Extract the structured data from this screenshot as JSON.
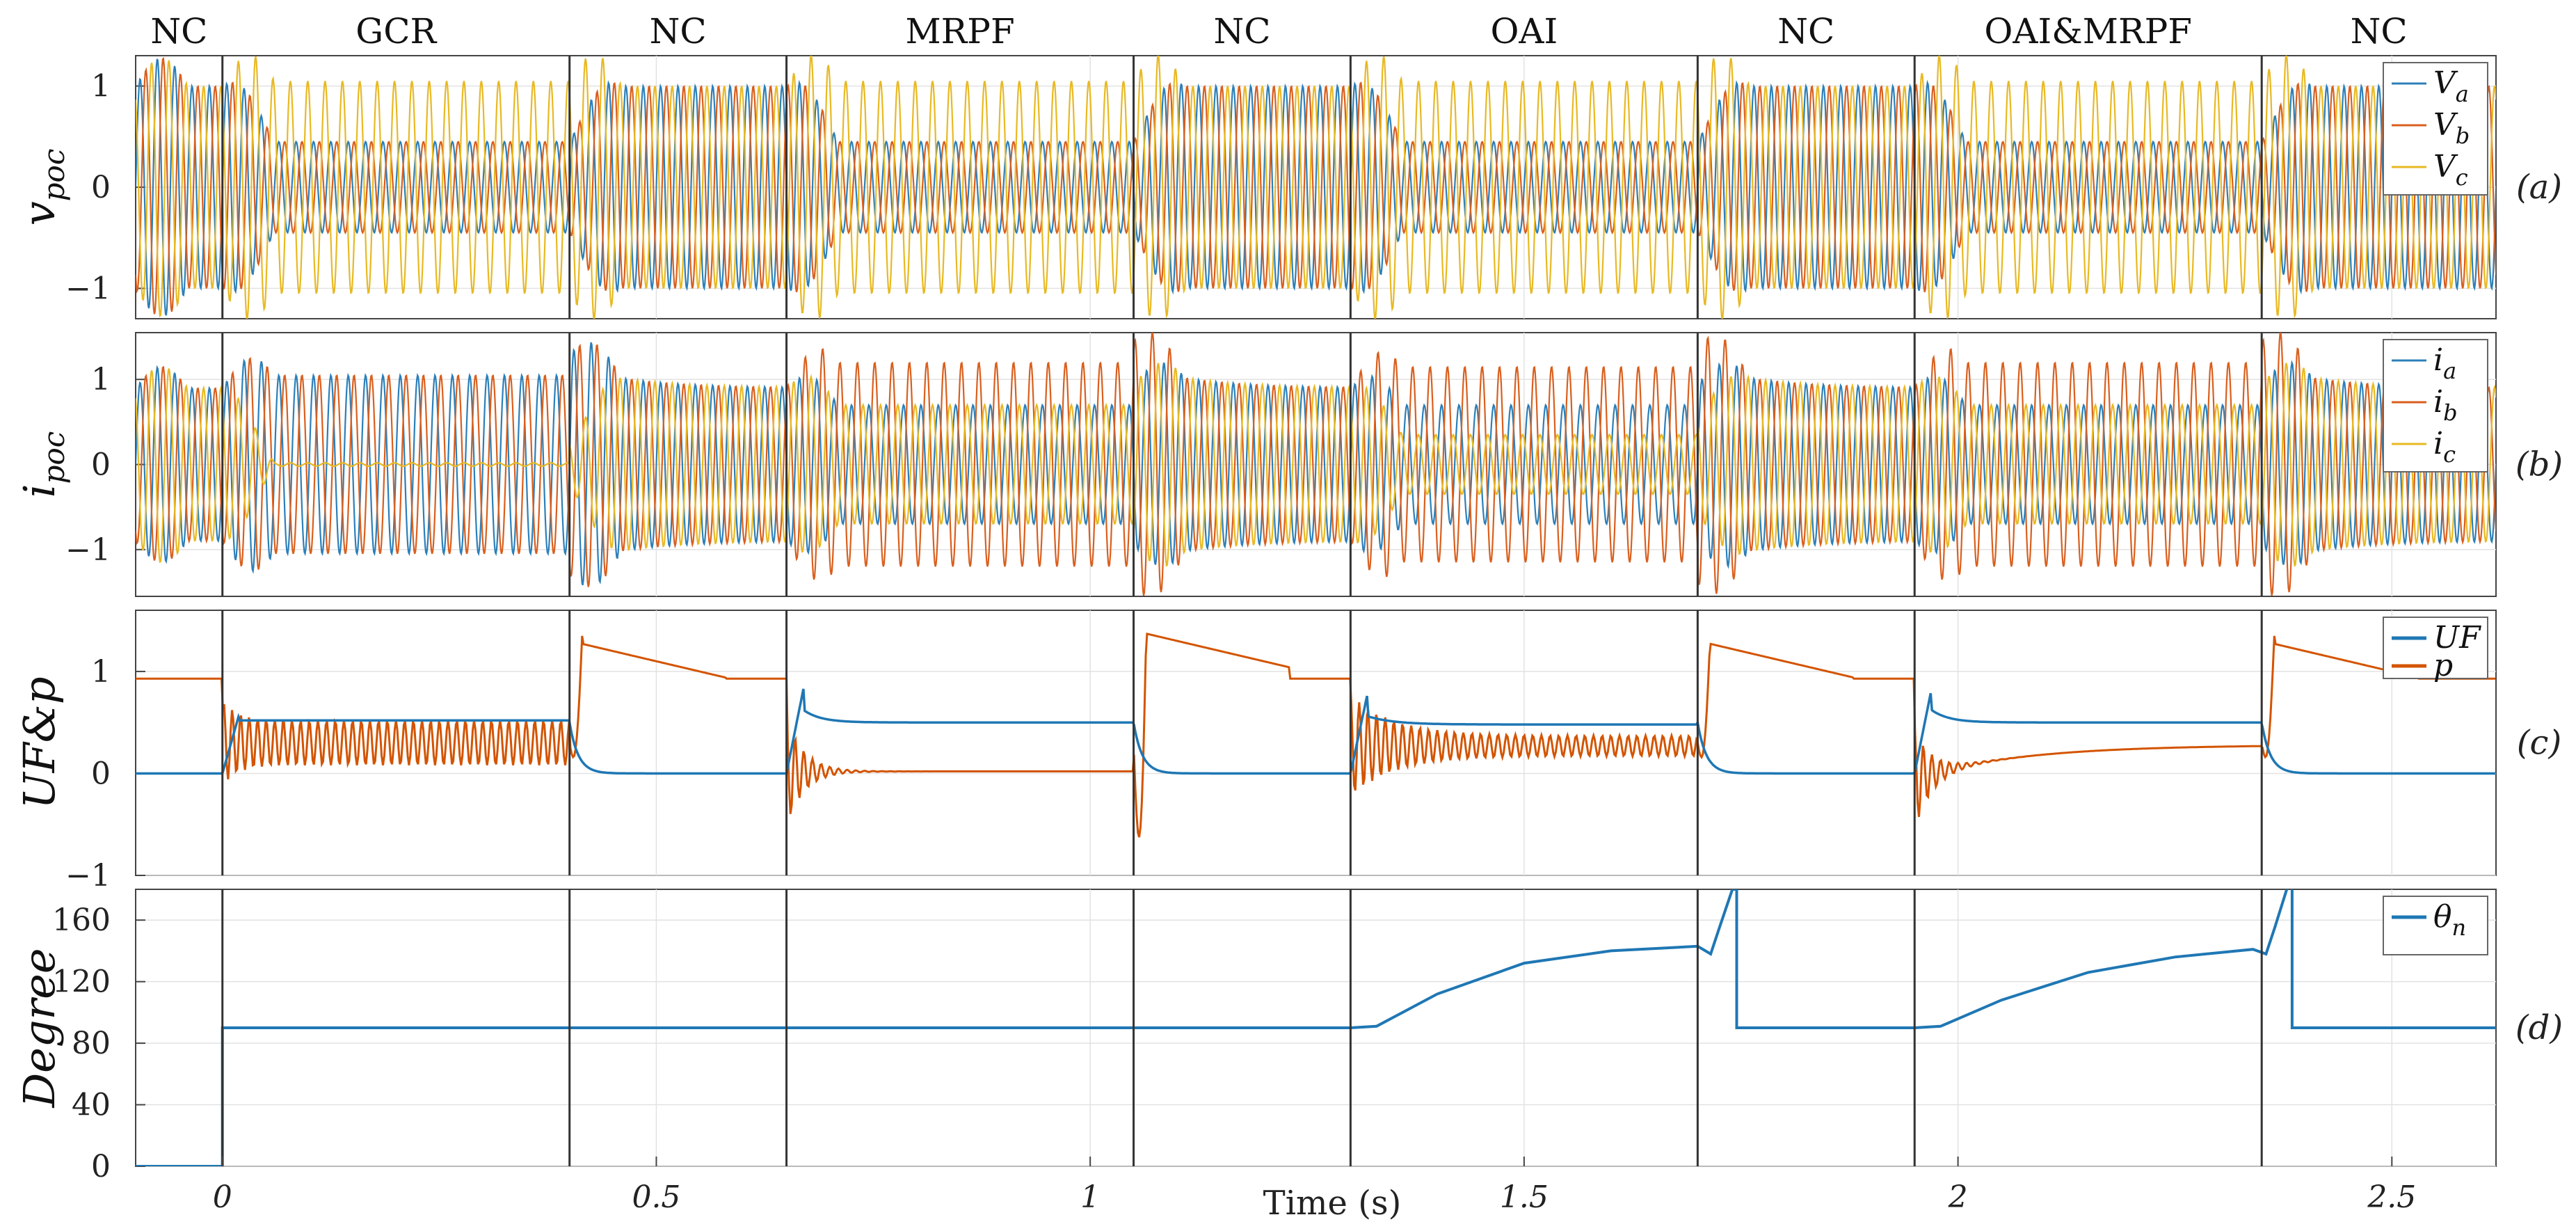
{
  "chart_data": {
    "type": "line",
    "xlabel": "Time (s)",
    "xlim": [
      -0.1,
      2.62
    ],
    "x_ticks": [
      {
        "value": 0,
        "label": "0"
      },
      {
        "value": 0.5,
        "label": "0.5"
      },
      {
        "value": 1,
        "label": "1"
      },
      {
        "value": 1.5,
        "label": "1.5"
      },
      {
        "value": 2,
        "label": "2"
      },
      {
        "value": 2.5,
        "label": "2.5"
      }
    ],
    "segments": [
      {
        "label": "NC",
        "start": -0.1,
        "end": 0.0
      },
      {
        "label": "GCR",
        "start": 0.0,
        "end": 0.4
      },
      {
        "label": "NC",
        "start": 0.4,
        "end": 0.65
      },
      {
        "label": "MRPF",
        "start": 0.65,
        "end": 1.05
      },
      {
        "label": "NC",
        "start": 1.05,
        "end": 1.3
      },
      {
        "label": "OAI",
        "start": 1.3,
        "end": 1.7
      },
      {
        "label": "NC",
        "start": 1.7,
        "end": 1.95
      },
      {
        "label": "OAI&MRPF",
        "start": 1.95,
        "end": 2.35
      },
      {
        "label": "NC",
        "start": 2.35,
        "end": 2.62
      }
    ],
    "panels": [
      {
        "id": "a",
        "tag": "(a)",
        "ylabel": "v",
        "ylabel_sub": "poc",
        "ylim": [
          -1.3,
          1.3
        ],
        "y_ticks": [
          {
            "value": -1,
            "label": "−1"
          },
          {
            "value": 0,
            "label": "0"
          },
          {
            "value": 1,
            "label": "1"
          }
        ],
        "series": [
          {
            "name": "V",
            "sub": "a",
            "color": "#2c7fb8"
          },
          {
            "name": "V",
            "sub": "b",
            "color": "#d95f1e"
          },
          {
            "name": "V",
            "sub": "c",
            "color": "#e8b923"
          }
        ],
        "amplitudes": {
          "NC": {
            "a": 1.0,
            "b": 1.0,
            "c": 1.0
          },
          "GCR": {
            "a": 0.45,
            "b": 0.45,
            "c": 1.05
          },
          "MRPF": {
            "a": 0.45,
            "b": 0.45,
            "c": 1.05
          },
          "OAI": {
            "a": 0.45,
            "b": 0.45,
            "c": 1.05
          },
          "OAI&MRPF": {
            "a": 0.45,
            "b": 0.45,
            "c": 1.05
          }
        }
      },
      {
        "id": "b",
        "tag": "(b)",
        "ylabel": "i",
        "ylabel_sub": "poc",
        "ylim": [
          -1.55,
          1.55
        ],
        "y_ticks": [
          {
            "value": -1,
            "label": "−1"
          },
          {
            "value": 0,
            "label": "0"
          },
          {
            "value": 1,
            "label": "1"
          }
        ],
        "series": [
          {
            "name": "i",
            "sub": "a",
            "color": "#2c7fb8"
          },
          {
            "name": "i",
            "sub": "b",
            "color": "#d95f1e"
          },
          {
            "name": "i",
            "sub": "c",
            "color": "#e8b923"
          }
        ],
        "amplitudes": {
          "NC": {
            "a": 0.9,
            "b": 0.9,
            "c": 0.9
          },
          "GCR": {
            "a": 1.05,
            "b": 1.05,
            "c": 0.02
          },
          "MRPF": {
            "a": 0.7,
            "b": 1.2,
            "c": 0.7
          },
          "OAI": {
            "a": 0.7,
            "b": 1.15,
            "c": 0.35
          },
          "OAI&MRPF": {
            "a": 0.7,
            "b": 1.2,
            "c": 0.7
          }
        }
      },
      {
        "id": "c",
        "tag": "(c)",
        "ylabel": "UF&p",
        "ylim": [
          -1,
          1.6
        ],
        "y_ticks": [
          {
            "value": -1,
            "label": "−1"
          },
          {
            "value": 0,
            "label": "0"
          },
          {
            "value": 1,
            "label": "1"
          }
        ],
        "series": [
          {
            "name": "UF",
            "color": "#1f77b4"
          },
          {
            "name": "p",
            "color": "#d35400"
          }
        ]
      },
      {
        "id": "d",
        "tag": "(d)",
        "ylabel": "Degree",
        "ylim": [
          0,
          180
        ],
        "y_ticks": [
          {
            "value": 0,
            "label": "0"
          },
          {
            "value": 40,
            "label": "40"
          },
          {
            "value": 80,
            "label": "80"
          },
          {
            "value": 120,
            "label": "120"
          },
          {
            "value": 160,
            "label": "160"
          }
        ],
        "series": [
          {
            "name": "θ",
            "sub": "n",
            "color": "#1f77b4"
          }
        ],
        "theta_points": [
          [
            -0.1,
            0
          ],
          [
            0.0,
            0
          ],
          [
            0.0,
            90
          ],
          [
            1.3,
            90
          ],
          [
            1.33,
            91
          ],
          [
            1.4,
            112
          ],
          [
            1.5,
            132
          ],
          [
            1.6,
            140
          ],
          [
            1.7,
            143
          ],
          [
            1.715,
            138
          ],
          [
            1.725,
            155
          ],
          [
            1.74,
            180
          ],
          [
            1.745,
            180
          ],
          [
            1.745,
            90
          ],
          [
            1.95,
            90
          ],
          [
            1.98,
            91
          ],
          [
            2.05,
            108
          ],
          [
            2.15,
            126
          ],
          [
            2.25,
            136
          ],
          [
            2.34,
            141
          ],
          [
            2.355,
            138
          ],
          [
            2.365,
            155
          ],
          [
            2.38,
            182
          ],
          [
            2.385,
            182
          ],
          [
            2.385,
            90
          ],
          [
            2.62,
            90
          ]
        ]
      }
    ]
  }
}
